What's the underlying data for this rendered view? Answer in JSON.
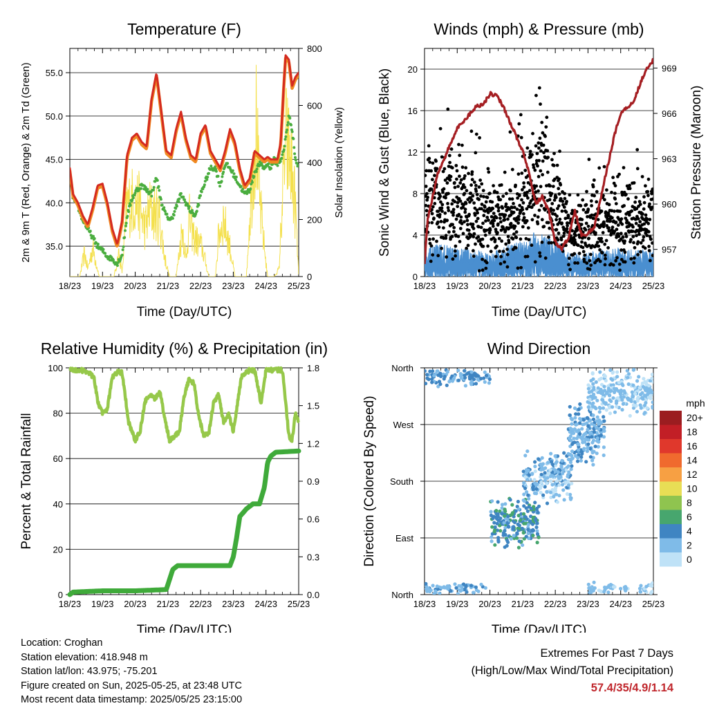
{
  "chart_data": [
    {
      "type": "line",
      "title": "Temperature (F)",
      "xlabel": "Time (Day/UTC)",
      "ylabel": "2m & 9m T (Red, Orange) & 2m Td (Green)",
      "ylabel_right": "Solar Insolation (Yellow)",
      "x_ticks": [
        "18/23",
        "19/23",
        "20/23",
        "21/23",
        "22/23",
        "23/23",
        "24/23",
        "25/23"
      ],
      "ylim": [
        31.5,
        57.8
      ],
      "y_ticks": [
        "35.0",
        "40.0",
        "45.0",
        "50.0",
        "55.0"
      ],
      "y_right_lim": [
        0,
        800
      ],
      "y_right_ticks": [
        "0",
        "200",
        "400",
        "600",
        "800"
      ],
      "grid": "horizontal",
      "colors": {
        "t2m": "#d42a20",
        "t9m": "#f08a22",
        "td2m": "#4aad3f",
        "solar": "#f4e04d"
      },
      "series": [
        {
          "key": "t2m",
          "x": [
            0,
            0.1,
            0.25,
            0.4,
            0.55,
            0.7,
            0.85,
            1.0,
            1.15,
            1.3,
            1.45,
            1.6,
            1.75,
            1.9,
            2.05,
            2.2,
            2.35,
            2.5,
            2.65,
            2.8,
            2.95,
            3.1,
            3.25,
            3.4,
            3.55,
            3.7,
            3.85,
            4.0,
            4.15,
            4.3,
            4.45,
            4.6,
            4.75,
            4.9,
            5.05,
            5.2,
            5.35,
            5.5,
            5.65,
            5.8,
            5.95,
            6.05,
            6.15,
            6.25,
            6.35,
            6.45,
            6.55,
            6.6,
            6.7,
            6.8,
            6.9,
            7.0
          ],
          "values": [
            44.0,
            41.0,
            40.0,
            38.5,
            37.5,
            39.5,
            42.0,
            42.2,
            40.0,
            37.0,
            35.2,
            38.0,
            45.5,
            47.5,
            48.0,
            47.0,
            46.5,
            52.0,
            55.0,
            50.5,
            46.0,
            45.5,
            48.5,
            50.5,
            47.5,
            45.5,
            45.0,
            48.0,
            49.0,
            46.0,
            45.0,
            44.0,
            46.0,
            48.5,
            47.0,
            44.0,
            42.0,
            42.8,
            46.0,
            45.5,
            45.0,
            45.3,
            45.0,
            45.0,
            45.0,
            47.0,
            54.0,
            57.0,
            56.5,
            53.5,
            54.5,
            55.0
          ]
        },
        {
          "key": "td2m",
          "x": [
            0,
            0.1,
            0.25,
            0.4,
            0.55,
            0.7,
            0.85,
            1.0,
            1.15,
            1.3,
            1.45,
            1.6,
            1.75,
            1.9,
            2.05,
            2.2,
            2.35,
            2.5,
            2.65,
            2.8,
            2.95,
            3.1,
            3.25,
            3.4,
            3.55,
            3.7,
            3.85,
            4.0,
            4.15,
            4.3,
            4.45,
            4.6,
            4.75,
            4.9,
            5.05,
            5.2,
            5.35,
            5.5,
            5.65,
            5.8,
            5.95,
            6.05,
            6.15,
            6.25,
            6.35,
            6.45,
            6.55,
            6.6,
            6.7,
            6.8,
            6.9,
            7.0
          ],
          "values": [
            43.5,
            40.5,
            39.5,
            38.0,
            37.0,
            36.0,
            35.0,
            34.5,
            33.8,
            33.5,
            33.0,
            34.0,
            38.5,
            40.5,
            41.5,
            42.0,
            41.5,
            41.0,
            43.0,
            40.0,
            38.5,
            38.0,
            39.5,
            41.0,
            40.0,
            39.0,
            38.5,
            41.0,
            42.5,
            44.0,
            44.0,
            42.0,
            44.5,
            44.0,
            43.0,
            42.0,
            41.0,
            41.5,
            43.5,
            44.5,
            44.0,
            44.5,
            44.0,
            45.0,
            44.5,
            45.0,
            46.0,
            47.5,
            50.0,
            48.5,
            45.0,
            44.0
          ]
        },
        {
          "key": "solar",
          "x": [
            0,
            0.3,
            0.45,
            0.55,
            0.7,
            0.9,
            1.15,
            1.35,
            1.5,
            1.6,
            1.75,
            1.95,
            2.1,
            2.3,
            2.45,
            2.6,
            2.75,
            2.9,
            3.05,
            3.25,
            3.45,
            3.55,
            3.65,
            3.8,
            4.05,
            4.25,
            4.45,
            4.55,
            4.7,
            4.9,
            5.05,
            5.25,
            5.4,
            5.5,
            5.6,
            5.7,
            5.8,
            5.95,
            6.05,
            6.25,
            6.4,
            6.5,
            6.6,
            6.75,
            6.9,
            7.0
          ],
          "values": [
            0,
            0,
            120,
            40,
            150,
            0,
            0,
            0,
            120,
            20,
            370,
            400,
            380,
            250,
            350,
            330,
            300,
            100,
            0,
            0,
            260,
            80,
            300,
            200,
            150,
            0,
            0,
            210,
            300,
            150,
            0,
            0,
            0,
            310,
            560,
            790,
            400,
            150,
            0,
            0,
            40,
            400,
            700,
            600,
            350,
            0
          ]
        }
      ]
    },
    {
      "type": "scatter",
      "title": "Winds (mph) & Pressure (mb)",
      "xlabel": "Time (Day/UTC)",
      "ylabel": "Sonic Wind & Gust (Blue, Black)",
      "ylabel_right": "Station Pressure (Maroon)",
      "x_ticks": [
        "18/23",
        "19/23",
        "20/23",
        "21/23",
        "22/23",
        "23/23",
        "24/23",
        "25/23"
      ],
      "ylim": [
        0,
        22
      ],
      "y_ticks": [
        "0",
        "4",
        "8",
        "12",
        "16",
        "20"
      ],
      "y_right_lim": [
        955.2,
        970.3
      ],
      "y_right_ticks": [
        "957",
        "960",
        "963",
        "966",
        "969"
      ],
      "grid": "horizontal",
      "colors": {
        "wind": "#4a8fd0",
        "gust": "#000000",
        "pressure": "#a51e22"
      },
      "series": [
        {
          "key": "wind_mean",
          "x": [
            0,
            0.5,
            1,
            1.5,
            2,
            2.5,
            3,
            3.5,
            4,
            4.5,
            5,
            5.5,
            6,
            6.5,
            7
          ],
          "values": [
            1.6,
            1.8,
            1.6,
            1.5,
            1.3,
            1.7,
            2.0,
            2.6,
            2.1,
            1.2,
            1.3,
            1.5,
            1.6,
            1.5,
            1.5
          ]
        },
        {
          "key": "gust_mean",
          "x": [
            0,
            0.5,
            1,
            1.5,
            2,
            2.5,
            3,
            3.5,
            4,
            4.5,
            5,
            5.5,
            6,
            6.5,
            7
          ],
          "values": [
            7.5,
            6.5,
            7.0,
            6.0,
            5.0,
            5.5,
            6.5,
            10.0,
            7.0,
            4.0,
            4.5,
            5.0,
            5.5,
            5.0,
            5.0
          ]
        },
        {
          "key": "pressure",
          "x": [
            0,
            0.1,
            0.25,
            0.4,
            0.6,
            0.8,
            1.0,
            1.2,
            1.4,
            1.6,
            1.8,
            2.0,
            2.2,
            2.4,
            2.6,
            2.8,
            3.0,
            3.2,
            3.4,
            3.6,
            3.8,
            4.0,
            4.2,
            4.4,
            4.6,
            4.8,
            5.0,
            5.2,
            5.4,
            5.6,
            5.8,
            6.0,
            6.2,
            6.4,
            6.6,
            6.8,
            6.9,
            7.0
          ],
          "values": [
            956.0,
            959.0,
            960.5,
            962.0,
            963.0,
            964.0,
            965.0,
            965.5,
            966.0,
            966.5,
            966.6,
            967.3,
            967.2,
            966.5,
            965.5,
            964.5,
            963.5,
            962.0,
            960.0,
            960.5,
            959.5,
            957.5,
            957.0,
            957.8,
            959.5,
            958.0,
            958.0,
            958.5,
            960.5,
            962.5,
            964.5,
            966.0,
            966.4,
            966.8,
            968.0,
            969.0,
            969.3,
            969.5
          ]
        }
      ]
    },
    {
      "type": "line",
      "title": "Relative Humidity (%) & Precipitation (in)",
      "xlabel": "Time (Day/UTC)",
      "ylabel": "Percent & Total Rainfall",
      "x_ticks": [
        "18/23",
        "19/23",
        "20/23",
        "21/23",
        "22/23",
        "23/23",
        "24/23",
        "25/23"
      ],
      "ylim": [
        0,
        100
      ],
      "y_ticks": [
        "0",
        "20",
        "40",
        "60",
        "80",
        "100"
      ],
      "y_right_lim": [
        0,
        1.8
      ],
      "y_right_ticks": [
        "0.0",
        "0.3",
        "0.6",
        "0.9",
        "1.2",
        "1.5",
        "1.8"
      ],
      "grid": "horizontal",
      "colors": {
        "rh": "#96c84a",
        "precip": "#3faa3a"
      },
      "series": [
        {
          "key": "rh",
          "x": [
            0,
            0.3,
            0.6,
            0.75,
            0.85,
            1.0,
            1.15,
            1.3,
            1.45,
            1.6,
            1.8,
            2.0,
            2.15,
            2.3,
            2.45,
            2.6,
            2.75,
            2.9,
            3.05,
            3.2,
            3.35,
            3.5,
            3.65,
            3.8,
            3.95,
            4.1,
            4.25,
            4.4,
            4.55,
            4.7,
            4.85,
            5.0,
            5.25,
            5.5,
            5.65,
            5.75,
            5.85,
            6.0,
            6.25,
            6.5,
            6.6,
            6.7,
            6.8,
            6.9,
            7.0
          ],
          "values": [
            99,
            99,
            98,
            95,
            85,
            80,
            82,
            96,
            98,
            98,
            76,
            68,
            72,
            85,
            88,
            86,
            90,
            78,
            68,
            70,
            72,
            88,
            95,
            93,
            78,
            70,
            71,
            85,
            88,
            76,
            80,
            72,
            96,
            99,
            99,
            92,
            84,
            99,
            99,
            99,
            85,
            70,
            68,
            80,
            76
          ]
        },
        {
          "key": "precip",
          "x": [
            0,
            0.1,
            1.0,
            2.0,
            2.95,
            3.05,
            3.15,
            3.3,
            4.0,
            4.9,
            5.0,
            5.1,
            5.2,
            5.4,
            5.6,
            5.8,
            5.95,
            6.05,
            6.15,
            6.3,
            7.0
          ],
          "values": [
            0,
            0.02,
            0.03,
            0.03,
            0.04,
            0.12,
            0.2,
            0.23,
            0.23,
            0.23,
            0.3,
            0.45,
            0.62,
            0.68,
            0.72,
            0.72,
            0.85,
            1.05,
            1.1,
            1.13,
            1.14
          ]
        }
      ]
    },
    {
      "type": "scatter",
      "title": "Wind Direction",
      "xlabel": "Time (Day/UTC)",
      "ylabel": "Direction (Colored By Speed)",
      "x_ticks": [
        "18/23",
        "19/23",
        "20/23",
        "21/23",
        "22/23",
        "23/23",
        "24/23",
        "25/23"
      ],
      "ylim": [
        0,
        360
      ],
      "y_ticks": [
        "North",
        "East",
        "South",
        "West",
        "North"
      ],
      "grid": "horizontal",
      "legend": {
        "title": "mph",
        "placement": "right",
        "labels": [
          "20+",
          "18",
          "16",
          "14",
          "12",
          "10",
          "8",
          "6",
          "4",
          "2",
          "0"
        ],
        "colors": [
          "#9b1d20",
          "#c21f26",
          "#e0382c",
          "#f06a2e",
          "#f7a043",
          "#e8de55",
          "#8fc44f",
          "#47a66e",
          "#3f85c2",
          "#7fbbe8",
          "#bfe2f7"
        ]
      },
      "clusters": [
        {
          "x": [
            0.0,
            2.0
          ],
          "dir": [
            330,
            360
          ],
          "speed": [
            1,
            5
          ]
        },
        {
          "x": [
            0.0,
            1.9
          ],
          "dir": [
            0,
            20
          ],
          "speed": [
            1,
            4
          ]
        },
        {
          "x": [
            2.0,
            3.5
          ],
          "dir": [
            70,
            160
          ],
          "speed": [
            2,
            6
          ]
        },
        {
          "x": [
            3.0,
            4.5
          ],
          "dir": [
            140,
            230
          ],
          "speed": [
            0,
            4
          ]
        },
        {
          "x": [
            4.4,
            5.5
          ],
          "dir": [
            200,
            310
          ],
          "speed": [
            1,
            4
          ]
        },
        {
          "x": [
            5.0,
            7.0
          ],
          "dir": [
            280,
            360
          ],
          "speed": [
            0,
            3
          ]
        },
        {
          "x": [
            5.0,
            7.0
          ],
          "dir": [
            0,
            20
          ],
          "speed": [
            0,
            3
          ]
        }
      ]
    }
  ],
  "info": {
    "location": "Location: Croghan",
    "elevation": "Station elevation: 418.948 m",
    "latlon": "Station lat/lon: 43.975; -75.201",
    "created": "Figure created on Sun, 2025-05-25, at 23:48 UTC",
    "recent": "Most recent data timestamp: 2025/05/25 23:15:00"
  },
  "extremes": {
    "title": "Extremes For Past 7 Days",
    "subtitle": "(High/Low/Max Wind/Total Precipitation)",
    "values": "57.4/35/4.9/1.14"
  }
}
